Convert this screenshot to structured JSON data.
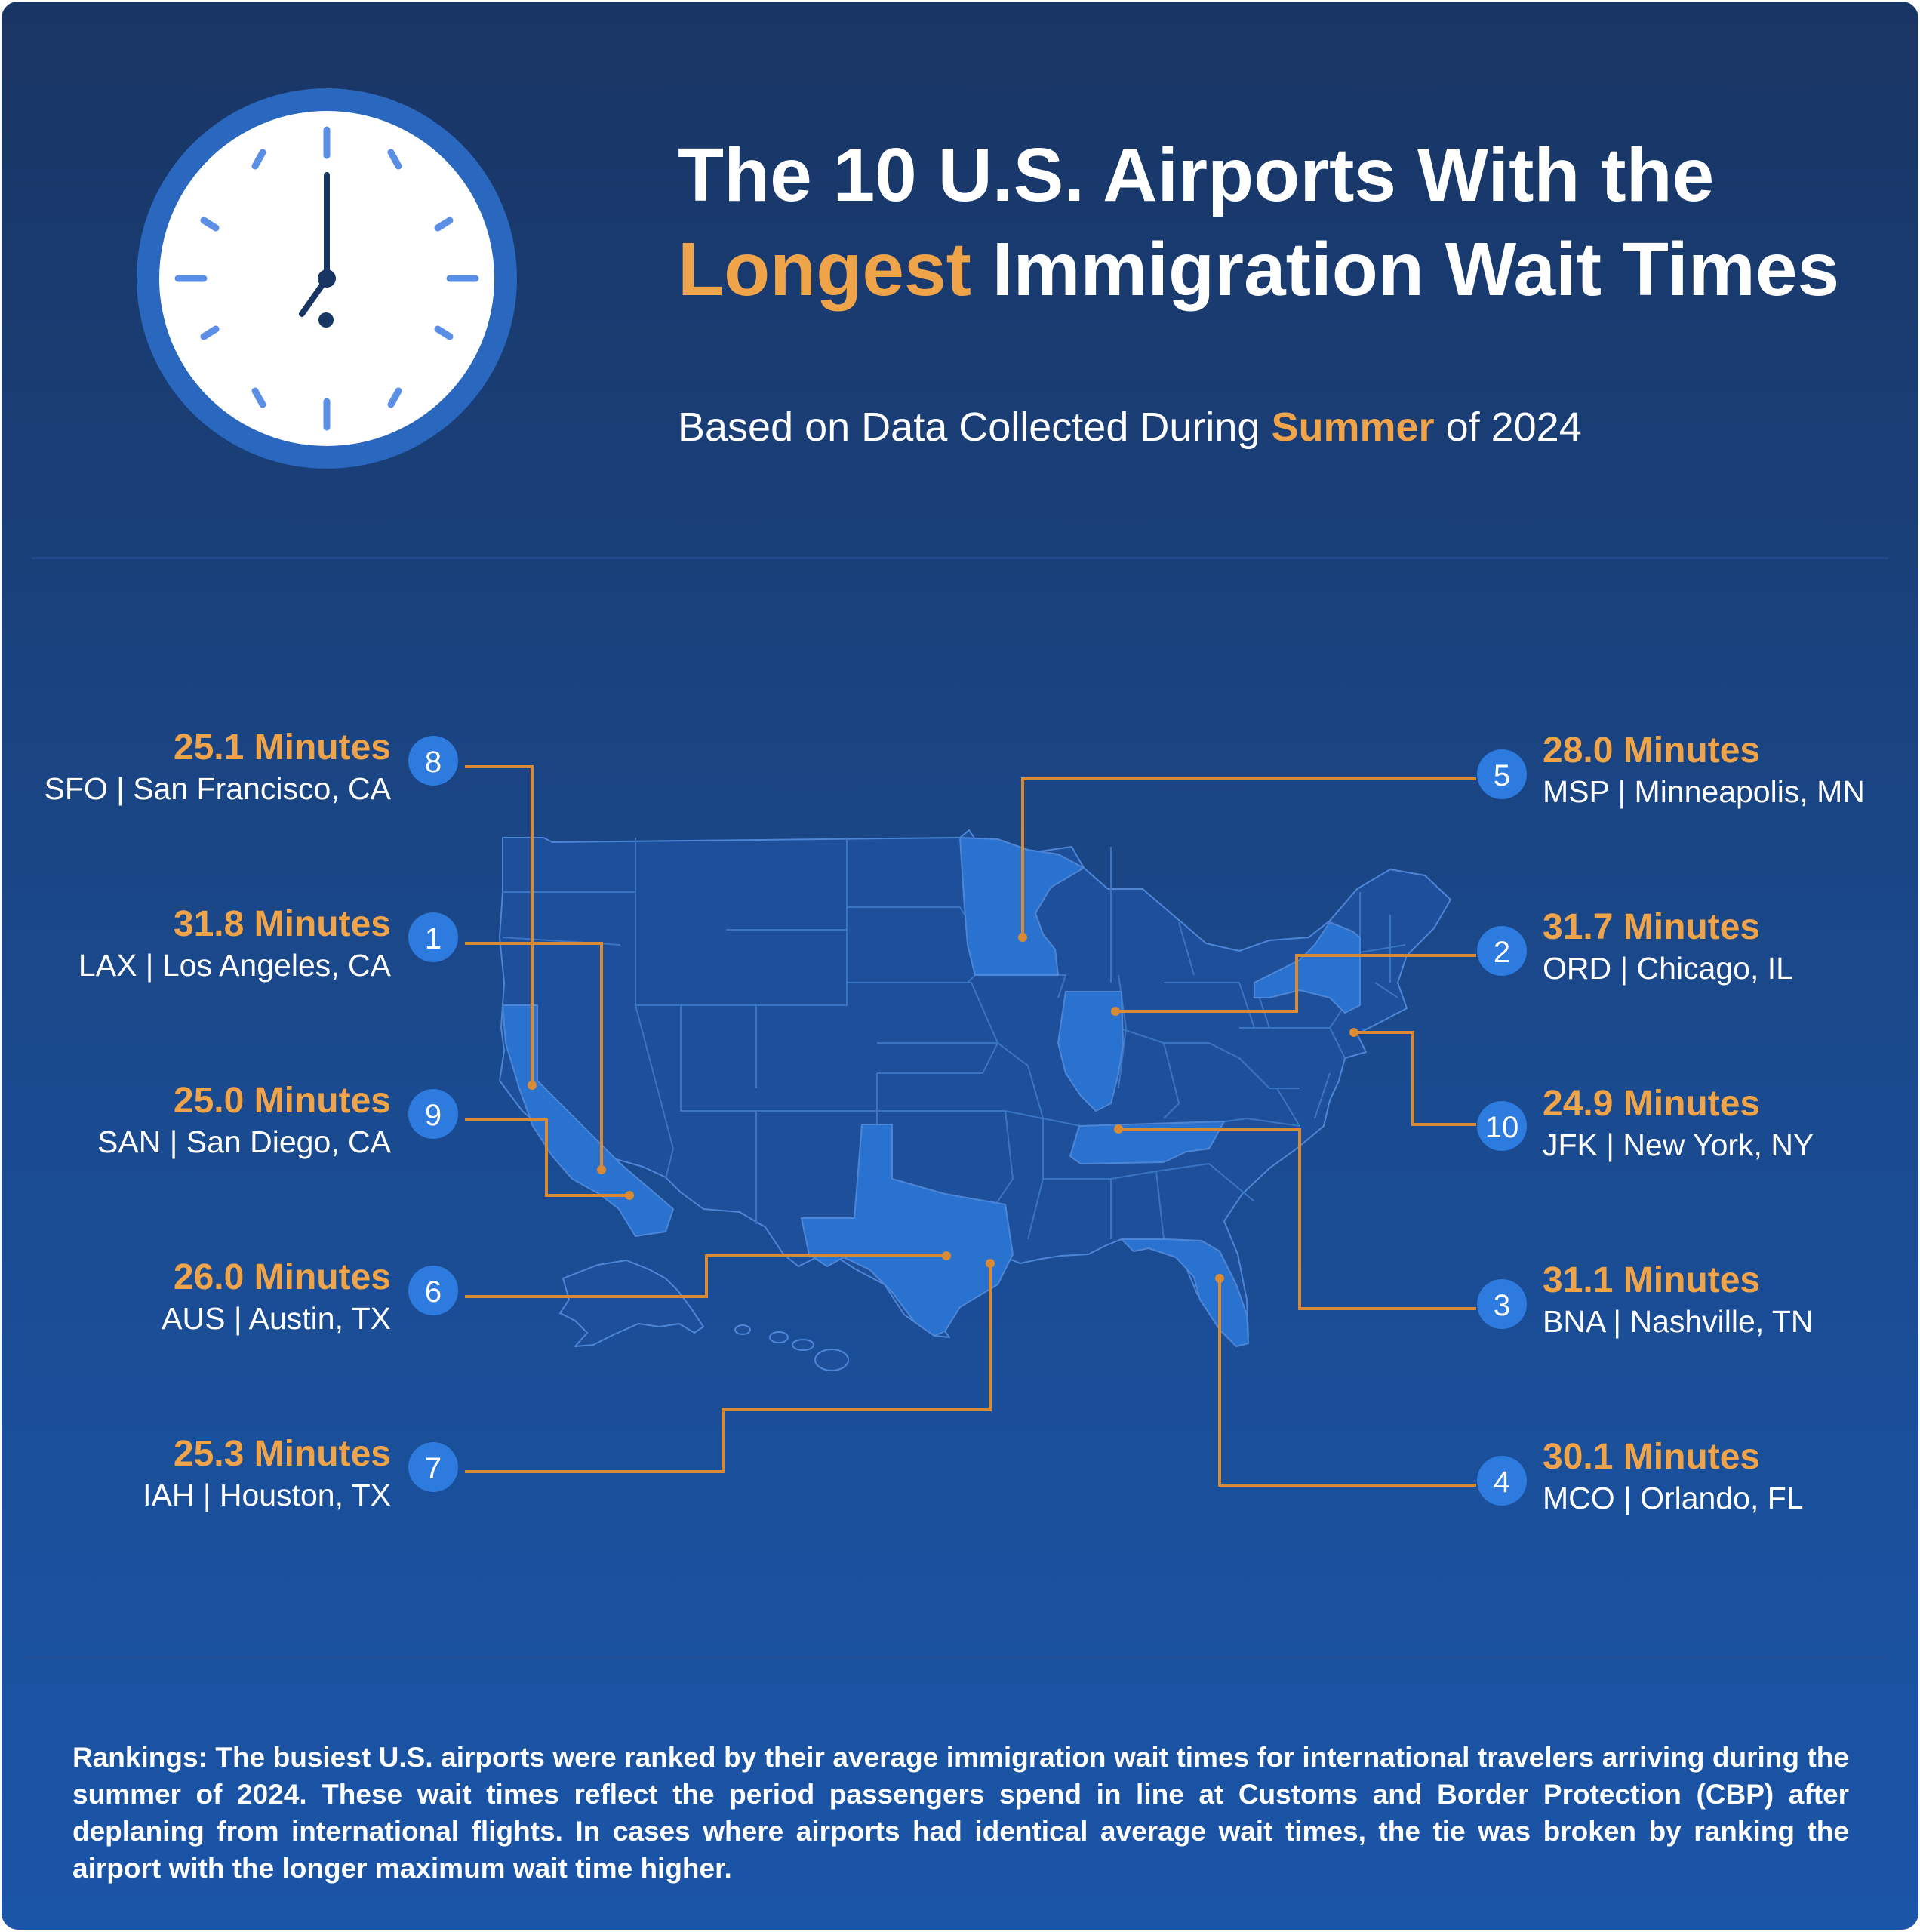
{
  "title": {
    "line1": "The 10 U.S. Airports With the",
    "highlight": "Longest",
    "line2_rest": " Immigration Wait Times"
  },
  "subtitle": {
    "before": "Based on Data Collected During ",
    "highlight": "Summer",
    "after": " of 2024"
  },
  "airports": [
    {
      "rank": "8",
      "value": "25.1 Minutes",
      "label": "SFO | San Francisco, CA"
    },
    {
      "rank": "1",
      "value": "31.8 Minutes",
      "label": "LAX | Los Angeles, CA"
    },
    {
      "rank": "9",
      "value": "25.0 Minutes",
      "label": "SAN | San Diego, CA"
    },
    {
      "rank": "6",
      "value": "26.0 Minutes",
      "label": "AUS | Austin, TX"
    },
    {
      "rank": "7",
      "value": "25.3 Minutes",
      "label": "IAH | Houston, TX"
    },
    {
      "rank": "5",
      "value": "28.0 Minutes",
      "label": "MSP | Minneapolis, MN"
    },
    {
      "rank": "2",
      "value": "31.7 Minutes",
      "label": "ORD | Chicago, IL"
    },
    {
      "rank": "10",
      "value": "24.9 Minutes",
      "label": "JFK | New York, NY"
    },
    {
      "rank": "3",
      "value": "31.1 Minutes",
      "label": "BNA | Nashville, TN"
    },
    {
      "rank": "4",
      "value": "30.1 Minutes",
      "label": "MCO | Orlando, FL"
    }
  ],
  "notes": "Rankings: The busiest U.S. airports were ranked by their average immigration wait times for international travelers arriving during the summer of 2024. These wait times reflect the period passengers spend in line at Customs and Border Protection (CBP) after deplaning from international flights. In cases where airports had identical average wait times, the tie was broken by ranking the airport with the longer maximum wait time higher.",
  "colors": {
    "accent": "#f0a44a",
    "highlight_state": "#2a72cf",
    "badge": "#2e7be0",
    "background_top": "#193564",
    "background_bottom": "#1b55a8"
  },
  "icons": {
    "clock": "clock-icon",
    "map": "us-map"
  }
}
